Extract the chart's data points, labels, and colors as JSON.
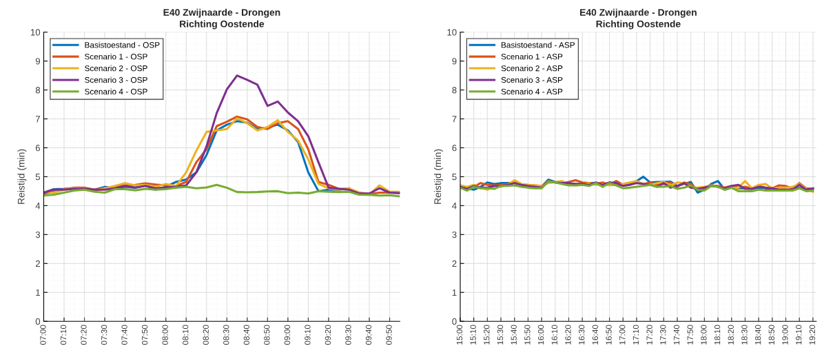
{
  "chart_data": [
    {
      "type": "line",
      "title": "E40 Zwijnaarde - Drongen",
      "subtitle": "Richting Oostende",
      "ylabel": "Reistijd (min)",
      "legend": "top left",
      "grid": true,
      "line_style": "solid",
      "x": [
        7,
        7.0833,
        7.1667,
        7.25,
        7.3333,
        7.4167,
        7.5,
        7.5833,
        7.6667,
        7.75,
        7.8333,
        7.9167,
        8,
        8.0833,
        8.1667,
        8.25,
        8.3333,
        8.4167,
        8.5,
        8.5833,
        8.6667,
        8.75,
        8.8333,
        8.9167,
        9,
        9.0833,
        9.1667,
        9.25,
        9.3333,
        9.4167,
        9.5,
        9.5833,
        9.6667,
        9.75,
        9.8333,
        9.9167
      ],
      "xlim": [
        7,
        9.9167
      ],
      "xticks": [
        {
          "value": 7,
          "label": "07:00"
        },
        {
          "value": 7.1667,
          "label": "07:10"
        },
        {
          "value": 7.3333,
          "label": "07:20"
        },
        {
          "value": 7.5,
          "label": "07:30"
        },
        {
          "value": 7.6667,
          "label": "07:40"
        },
        {
          "value": 7.8333,
          "label": "07:50"
        },
        {
          "value": 8,
          "label": "08:00"
        },
        {
          "value": 8.1667,
          "label": "08:10"
        },
        {
          "value": 8.3333,
          "label": "08:20"
        },
        {
          "value": 8.5,
          "label": "08:30"
        },
        {
          "value": 8.6667,
          "label": "08:40"
        },
        {
          "value": 8.8333,
          "label": "08:50"
        },
        {
          "value": 9,
          "label": "09:00"
        },
        {
          "value": 9.1667,
          "label": "09:10"
        },
        {
          "value": 9.3333,
          "label": "09:20"
        },
        {
          "value": 9.5,
          "label": "09:30"
        },
        {
          "value": 9.6667,
          "label": "09:40"
        },
        {
          "value": 9.8333,
          "label": "09:50"
        }
      ],
      "ylim": [
        0,
        10
      ],
      "yticks": [
        0,
        1,
        2,
        3,
        4,
        5,
        6,
        7,
        8,
        9,
        10
      ],
      "series": [
        {
          "name": "Basistoestand - OSP",
          "color": "#0072bd",
          "values": [
            4.45,
            4.57,
            4.58,
            4.6,
            4.58,
            4.55,
            4.65,
            4.6,
            4.65,
            4.62,
            4.7,
            4.55,
            4.65,
            4.82,
            4.9,
            5.15,
            5.75,
            6.6,
            6.8,
            6.92,
            6.87,
            6.65,
            6.7,
            6.8,
            6.6,
            6.2,
            5.15,
            4.5,
            4.55,
            4.55,
            4.6,
            null,
            null,
            null,
            null,
            null
          ]
        },
        {
          "name": "Scenario 1 - OSP",
          "color": "#d95319",
          "values": [
            4.42,
            4.48,
            4.57,
            4.62,
            4.62,
            4.55,
            4.6,
            4.65,
            4.7,
            4.72,
            4.77,
            4.73,
            4.7,
            4.68,
            4.82,
            5.5,
            5.95,
            6.75,
            6.9,
            7.08,
            6.98,
            6.72,
            6.65,
            6.85,
            6.92,
            6.65,
            5.95,
            4.82,
            4.72,
            4.58,
            4.58,
            4.45,
            4.4,
            4.45,
            4.45,
            4.45
          ]
        },
        {
          "name": "Scenario 2 - OSP",
          "color": "#edb120",
          "values": [
            4.48,
            4.45,
            4.55,
            4.6,
            4.58,
            4.52,
            4.6,
            4.68,
            4.78,
            4.7,
            4.72,
            4.65,
            4.75,
            4.68,
            5.15,
            5.9,
            6.55,
            6.6,
            6.65,
            7.02,
            6.85,
            6.6,
            6.72,
            6.95,
            6.55,
            6.25,
            5.6,
            4.75,
            4.6,
            4.55,
            4.6,
            4.45,
            4.38,
            4.7,
            4.48,
            4.48
          ]
        },
        {
          "name": "Scenario 3 - OSP",
          "color": "#7e2f8e",
          "values": [
            4.45,
            4.55,
            4.55,
            4.58,
            4.58,
            4.55,
            4.55,
            4.6,
            4.68,
            4.62,
            4.68,
            4.6,
            4.63,
            4.65,
            4.7,
            5.15,
            6.05,
            7.2,
            8.02,
            8.5,
            8.35,
            8.18,
            7.45,
            7.6,
            7.22,
            6.92,
            6.4,
            5.5,
            4.62,
            4.58,
            4.55,
            4.42,
            4.42,
            4.6,
            4.45,
            4.43
          ]
        },
        {
          "name": "Scenario 4 - OSP",
          "color": "#77ac30",
          "values": [
            4.35,
            4.38,
            4.45,
            4.52,
            4.55,
            4.48,
            4.45,
            4.57,
            4.57,
            4.53,
            4.58,
            4.55,
            4.57,
            4.62,
            4.65,
            4.6,
            4.63,
            4.72,
            4.62,
            4.47,
            4.46,
            4.47,
            4.49,
            4.5,
            4.43,
            4.45,
            4.42,
            4.5,
            4.48,
            4.47,
            4.48,
            4.38,
            4.37,
            4.35,
            4.36,
            4.32
          ]
        }
      ]
    },
    {
      "type": "line",
      "title": "E40 Zwijnaarde - Drongen",
      "subtitle": "Richting Oostende",
      "ylabel": "Reistijd (min)",
      "legend": "top left",
      "grid": true,
      "line_style": "solid",
      "x": [
        15,
        15.0833,
        15.1667,
        15.25,
        15.3333,
        15.4167,
        15.5,
        15.5833,
        15.6667,
        15.75,
        15.8333,
        15.9167,
        16,
        16.0833,
        16.1667,
        16.25,
        16.3333,
        16.4167,
        16.5,
        16.5833,
        16.6667,
        16.75,
        16.8333,
        16.9167,
        17,
        17.0833,
        17.1667,
        17.25,
        17.3333,
        17.4167,
        17.5,
        17.5833,
        17.6667,
        17.75,
        17.8333,
        17.9167,
        18,
        18.0833,
        18.1667,
        18.25,
        18.3333,
        18.4167,
        18.5,
        18.5833,
        18.6667,
        18.75,
        18.8333,
        18.9167,
        19,
        19.0833,
        19.1667,
        19.25,
        19.3333
      ],
      "xlim": [
        15,
        19.375
      ],
      "xticks": [
        {
          "value": 15,
          "label": "15:00"
        },
        {
          "value": 15.1667,
          "label": "15:10"
        },
        {
          "value": 15.3333,
          "label": "15:20"
        },
        {
          "value": 15.5,
          "label": "15:30"
        },
        {
          "value": 15.6667,
          "label": "15:40"
        },
        {
          "value": 15.8333,
          "label": "15:50"
        },
        {
          "value": 16,
          "label": "16:00"
        },
        {
          "value": 16.1667,
          "label": "16:10"
        },
        {
          "value": 16.3333,
          "label": "16:20"
        },
        {
          "value": 16.5,
          "label": "16:30"
        },
        {
          "value": 16.6667,
          "label": "16:40"
        },
        {
          "value": 16.8333,
          "label": "16:50"
        },
        {
          "value": 17,
          "label": "17:00"
        },
        {
          "value": 17.1667,
          "label": "17:10"
        },
        {
          "value": 17.3333,
          "label": "17:20"
        },
        {
          "value": 17.5,
          "label": "17:30"
        },
        {
          "value": 17.6667,
          "label": "17:40"
        },
        {
          "value": 17.8333,
          "label": "17:50"
        },
        {
          "value": 18,
          "label": "18:00"
        },
        {
          "value": 18.1667,
          "label": "18:10"
        },
        {
          "value": 18.3333,
          "label": "18:20"
        },
        {
          "value": 18.5,
          "label": "18:30"
        },
        {
          "value": 18.6667,
          "label": "18:40"
        },
        {
          "value": 18.8333,
          "label": "18:50"
        },
        {
          "value": 19,
          "label": "19:00"
        },
        {
          "value": 19.1667,
          "label": "19:10"
        },
        {
          "value": 19.3333,
          "label": "19:20"
        }
      ],
      "ylim": [
        0,
        10
      ],
      "yticks": [
        0,
        1,
        2,
        3,
        4,
        5,
        6,
        7,
        8,
        9,
        10
      ],
      "series": [
        {
          "name": "Basistoestand - ASP",
          "color": "#0072bd",
          "values": [
            4.68,
            4.6,
            4.55,
            4.65,
            4.8,
            4.75,
            4.78,
            4.78,
            4.78,
            4.72,
            4.68,
            4.68,
            4.65,
            4.9,
            4.82,
            4.8,
            4.75,
            4.75,
            4.72,
            4.78,
            4.78,
            4.7,
            4.8,
            4.72,
            4.72,
            4.78,
            4.85,
            5.0,
            4.8,
            4.82,
            4.82,
            4.83,
            4.68,
            4.75,
            4.82,
            4.45,
            4.55,
            4.75,
            4.85,
            4.55,
            4.62,
            4.6,
            4.6,
            4.58,
            4.62,
            4.6,
            4.55,
            4.55,
            4.55,
            4.55,
            4.62,
            4.55,
            4.58
          ]
        },
        {
          "name": "Scenario 1 - ASP",
          "color": "#d95319",
          "values": [
            4.7,
            4.62,
            4.65,
            4.78,
            4.72,
            4.7,
            4.72,
            4.75,
            4.82,
            4.7,
            4.72,
            4.7,
            4.68,
            4.85,
            4.8,
            4.78,
            4.82,
            4.88,
            4.8,
            4.78,
            4.75,
            4.8,
            4.72,
            4.85,
            4.72,
            4.78,
            4.8,
            4.75,
            4.8,
            4.72,
            4.75,
            4.8,
            4.65,
            4.8,
            4.75,
            4.55,
            4.58,
            4.7,
            4.68,
            4.62,
            4.68,
            4.62,
            4.65,
            4.6,
            4.68,
            4.62,
            4.6,
            4.7,
            4.68,
            4.6,
            4.78,
            4.6,
            4.58
          ]
        },
        {
          "name": "Scenario 2 - ASP",
          "color": "#edb120",
          "values": [
            4.7,
            4.65,
            4.72,
            4.62,
            4.55,
            4.68,
            4.65,
            4.72,
            4.88,
            4.75,
            4.72,
            4.7,
            4.68,
            4.78,
            4.82,
            4.85,
            4.75,
            4.7,
            4.72,
            4.78,
            4.72,
            4.75,
            4.7,
            4.72,
            4.75,
            4.8,
            4.85,
            4.75,
            4.72,
            4.78,
            4.82,
            4.7,
            4.8,
            4.78,
            4.62,
            4.62,
            4.65,
            4.7,
            4.65,
            4.58,
            4.62,
            4.62,
            4.85,
            4.6,
            4.72,
            4.75,
            4.6,
            4.62,
            4.62,
            4.65,
            4.75,
            4.58,
            4.48
          ]
        },
        {
          "name": "Scenario 3 - ASP",
          "color": "#7e2f8e",
          "values": [
            4.65,
            4.58,
            4.68,
            4.62,
            4.62,
            4.68,
            4.68,
            4.72,
            4.78,
            4.72,
            4.68,
            4.65,
            4.62,
            4.85,
            4.8,
            4.78,
            4.78,
            4.75,
            4.75,
            4.72,
            4.8,
            4.72,
            4.8,
            4.78,
            4.68,
            4.72,
            4.78,
            4.75,
            4.72,
            4.65,
            4.78,
            4.62,
            4.68,
            4.78,
            4.62,
            4.58,
            4.62,
            4.68,
            4.65,
            4.6,
            4.68,
            4.72,
            4.58,
            4.58,
            4.65,
            4.62,
            4.6,
            4.55,
            4.55,
            4.55,
            4.72,
            4.55,
            4.6
          ]
        },
        {
          "name": "Scenario 4 - ASP",
          "color": "#77ac30",
          "values": [
            4.62,
            4.52,
            4.65,
            4.6,
            4.6,
            4.58,
            4.68,
            4.68,
            4.7,
            4.65,
            4.62,
            4.6,
            4.6,
            4.85,
            4.8,
            4.75,
            4.7,
            4.7,
            4.72,
            4.68,
            4.78,
            4.65,
            4.78,
            4.7,
            4.6,
            4.62,
            4.65,
            4.68,
            4.72,
            4.65,
            4.65,
            4.68,
            4.58,
            4.62,
            4.7,
            4.55,
            4.52,
            4.68,
            4.65,
            4.55,
            4.62,
            4.5,
            4.5,
            4.5,
            4.55,
            4.52,
            4.52,
            4.52,
            4.52,
            4.52,
            4.6,
            4.5,
            4.52
          ]
        }
      ]
    }
  ]
}
